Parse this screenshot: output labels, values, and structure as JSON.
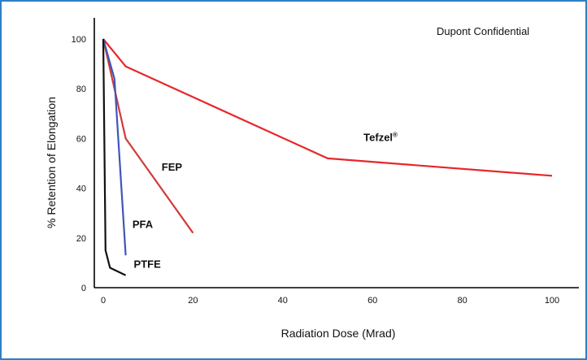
{
  "annotation": "Dupont Confidential",
  "chart_data": {
    "type": "line",
    "title": "",
    "xlabel": "Radiation Dose  (Mrad)",
    "ylabel": "% Retention of Elongation",
    "xlim": [
      0,
      105
    ],
    "ylim": [
      0,
      105
    ],
    "x_ticks": [
      0,
      20,
      40,
      60,
      80,
      100
    ],
    "y_ticks": [
      0,
      20,
      40,
      60,
      80,
      100
    ],
    "grid": false,
    "legend": "none",
    "series": [
      {
        "name": "Tefzel®",
        "color": "#e8262b",
        "points": [
          [
            0,
            100
          ],
          [
            5,
            89
          ],
          [
            50,
            52
          ],
          [
            100,
            45
          ]
        ]
      },
      {
        "name": "FEP",
        "color": "#d13a3a",
        "points": [
          [
            0,
            100
          ],
          [
            5,
            60
          ],
          [
            20,
            22
          ]
        ]
      },
      {
        "name": "PFA",
        "color": "#3f56b5",
        "points": [
          [
            0,
            100
          ],
          [
            2.5,
            84
          ],
          [
            5,
            13
          ]
        ]
      },
      {
        "name": "PTFE",
        "color": "#111111",
        "points": [
          [
            0,
            100
          ],
          [
            0.5,
            15
          ],
          [
            1.5,
            8
          ],
          [
            5,
            5
          ]
        ]
      }
    ]
  }
}
